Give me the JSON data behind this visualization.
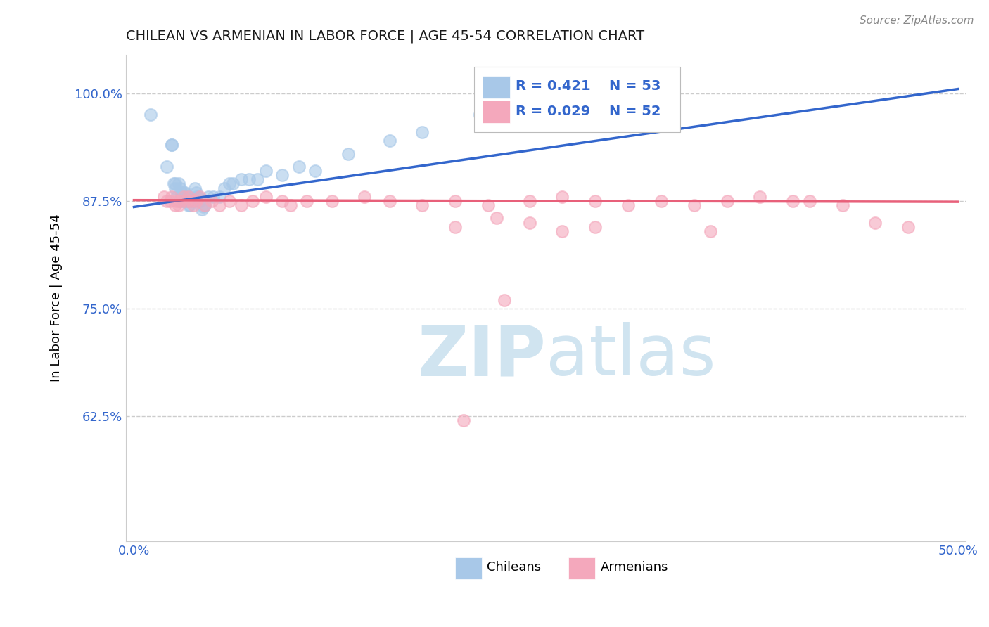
{
  "title": "CHILEAN VS ARMENIAN IN LABOR FORCE | AGE 45-54 CORRELATION CHART",
  "source_text": "Source: ZipAtlas.com",
  "ylabel": "In Labor Force | Age 45-54",
  "xlim": [
    -0.005,
    0.505
  ],
  "ylim": [
    0.48,
    1.045
  ],
  "xticks": [
    0.0,
    0.05,
    0.1,
    0.15,
    0.2,
    0.25,
    0.3,
    0.35,
    0.4,
    0.45,
    0.5
  ],
  "xticklabels": [
    "0.0%",
    "",
    "",
    "",
    "",
    "",
    "",
    "",
    "",
    "",
    "50.0%"
  ],
  "yticks": [
    0.625,
    0.75,
    0.875,
    1.0
  ],
  "yticklabels": [
    "62.5%",
    "75.0%",
    "87.5%",
    "100.0%"
  ],
  "legend_R_blue": "R = 0.421",
  "legend_N_blue": "N = 53",
  "legend_R_pink": "R = 0.029",
  "legend_N_pink": "N = 52",
  "legend_label_blue": "Chileans",
  "legend_label_pink": "Armenians",
  "blue_color": "#a8c8e8",
  "pink_color": "#f4a8bc",
  "line_blue": "#3366cc",
  "line_pink": "#e8607a",
  "title_color": "#1a1a2e",
  "axis_color": "#3366cc",
  "watermark_color": "#d0e4f0",
  "background_color": "#ffffff",
  "grid_color": "#cccccc",
  "chileans_x": [
    0.01,
    0.02,
    0.023,
    0.023,
    0.024,
    0.025,
    0.025,
    0.026,
    0.027,
    0.028,
    0.028,
    0.029,
    0.029,
    0.03,
    0.03,
    0.03,
    0.031,
    0.031,
    0.032,
    0.032,
    0.033,
    0.033,
    0.034,
    0.034,
    0.035,
    0.036,
    0.037,
    0.038,
    0.038,
    0.039,
    0.04,
    0.041,
    0.042,
    0.043,
    0.045,
    0.048,
    0.052,
    0.055,
    0.058,
    0.06,
    0.065,
    0.07,
    0.075,
    0.08,
    0.09,
    0.1,
    0.11,
    0.13,
    0.155,
    0.175,
    0.21,
    0.23,
    0.25
  ],
  "chileans_y": [
    0.975,
    0.915,
    0.94,
    0.94,
    0.895,
    0.89,
    0.895,
    0.88,
    0.895,
    0.875,
    0.89,
    0.88,
    0.885,
    0.875,
    0.88,
    0.885,
    0.875,
    0.885,
    0.875,
    0.88,
    0.88,
    0.87,
    0.87,
    0.875,
    0.875,
    0.875,
    0.89,
    0.88,
    0.885,
    0.88,
    0.875,
    0.865,
    0.868,
    0.87,
    0.88,
    0.88,
    0.88,
    0.89,
    0.895,
    0.895,
    0.9,
    0.9,
    0.9,
    0.91,
    0.905,
    0.915,
    0.91,
    0.93,
    0.945,
    0.955,
    0.975,
    0.99,
    1.0
  ],
  "armenians_x": [
    0.018,
    0.02,
    0.022,
    0.023,
    0.025,
    0.026,
    0.027,
    0.028,
    0.03,
    0.032,
    0.033,
    0.035,
    0.036,
    0.038,
    0.04,
    0.043,
    0.047,
    0.052,
    0.058,
    0.065,
    0.072,
    0.08,
    0.09,
    0.095,
    0.105,
    0.12,
    0.14,
    0.155,
    0.175,
    0.195,
    0.215,
    0.24,
    0.26,
    0.28,
    0.3,
    0.32,
    0.34,
    0.36,
    0.38,
    0.4,
    0.195,
    0.22,
    0.24,
    0.26,
    0.28,
    0.35,
    0.41,
    0.43,
    0.45,
    0.47,
    0.2,
    0.225
  ],
  "armenians_y": [
    0.88,
    0.875,
    0.875,
    0.88,
    0.87,
    0.875,
    0.87,
    0.875,
    0.88,
    0.875,
    0.88,
    0.875,
    0.87,
    0.875,
    0.88,
    0.87,
    0.875,
    0.87,
    0.875,
    0.87,
    0.875,
    0.88,
    0.875,
    0.87,
    0.875,
    0.875,
    0.88,
    0.875,
    0.87,
    0.875,
    0.87,
    0.875,
    0.88,
    0.875,
    0.87,
    0.875,
    0.87,
    0.875,
    0.88,
    0.875,
    0.845,
    0.855,
    0.85,
    0.84,
    0.845,
    0.84,
    0.875,
    0.87,
    0.85,
    0.845,
    0.62,
    0.76
  ]
}
